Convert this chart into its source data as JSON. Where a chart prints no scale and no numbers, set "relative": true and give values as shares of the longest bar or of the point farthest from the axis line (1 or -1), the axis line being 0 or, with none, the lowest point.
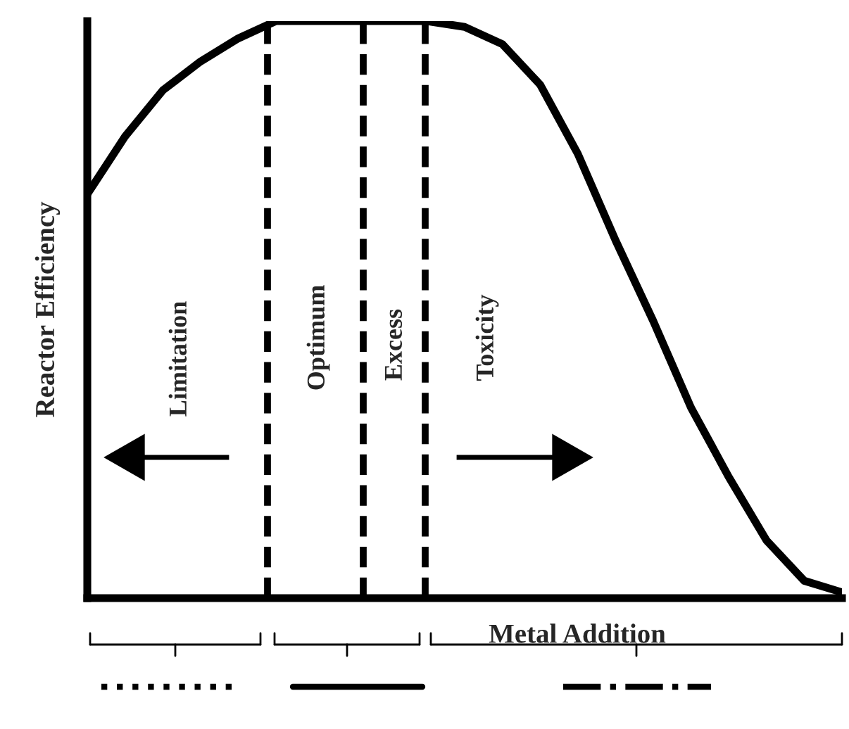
{
  "chart_data": {
    "type": "line",
    "relative": true,
    "xlabel": "Metal Addition",
    "ylabel": "Reactor Efficiency",
    "categories": [
      null,
      null,
      null,
      null,
      null,
      null,
      null,
      null,
      null,
      null,
      null,
      null,
      null,
      null,
      null,
      null,
      null,
      null,
      null,
      null,
      null
    ],
    "series": [
      {
        "color": "#000000",
        "values": [
          0.7,
          0.8,
          0.88,
          0.93,
          0.97,
          1,
          1,
          1,
          1,
          1,
          0.99,
          0.96,
          0.89,
          0.77,
          0.62,
          0.48,
          0.33,
          0.21,
          0.1,
          0.03,
          0.01
        ]
      }
    ],
    "annotations": [
      "Limitation",
      "Optimum",
      "Excess",
      "Toxicity"
    ],
    "line_style": "solid",
    "marker": "none",
    "grid": false,
    "legend": false
  }
}
